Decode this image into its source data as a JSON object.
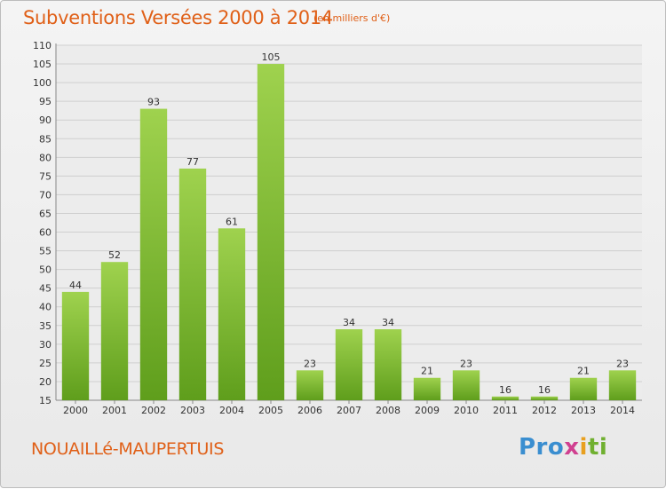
{
  "chart_data": {
    "type": "bar",
    "title": "Subventions Versées 2000 à 2014",
    "subtitle": "(en milliers d'€)",
    "categories": [
      "2000",
      "2001",
      "2002",
      "2003",
      "2004",
      "2005",
      "2006",
      "2007",
      "2008",
      "2009",
      "2010",
      "2011",
      "2012",
      "2013",
      "2014"
    ],
    "values": [
      44,
      52,
      93,
      77,
      61,
      105,
      23,
      34,
      34,
      21,
      23,
      16,
      16,
      21,
      23
    ],
    "ylim": [
      15,
      110
    ],
    "yticks": [
      15,
      20,
      25,
      30,
      35,
      40,
      45,
      50,
      55,
      60,
      65,
      70,
      75,
      80,
      85,
      90,
      95,
      100,
      105,
      110
    ],
    "grid": true,
    "bar_color": "#7fba2e"
  },
  "footer": {
    "place": "NOUAILLé-MAUPERTUIS",
    "logo": [
      "Pro",
      "x",
      "i",
      "ti"
    ]
  }
}
